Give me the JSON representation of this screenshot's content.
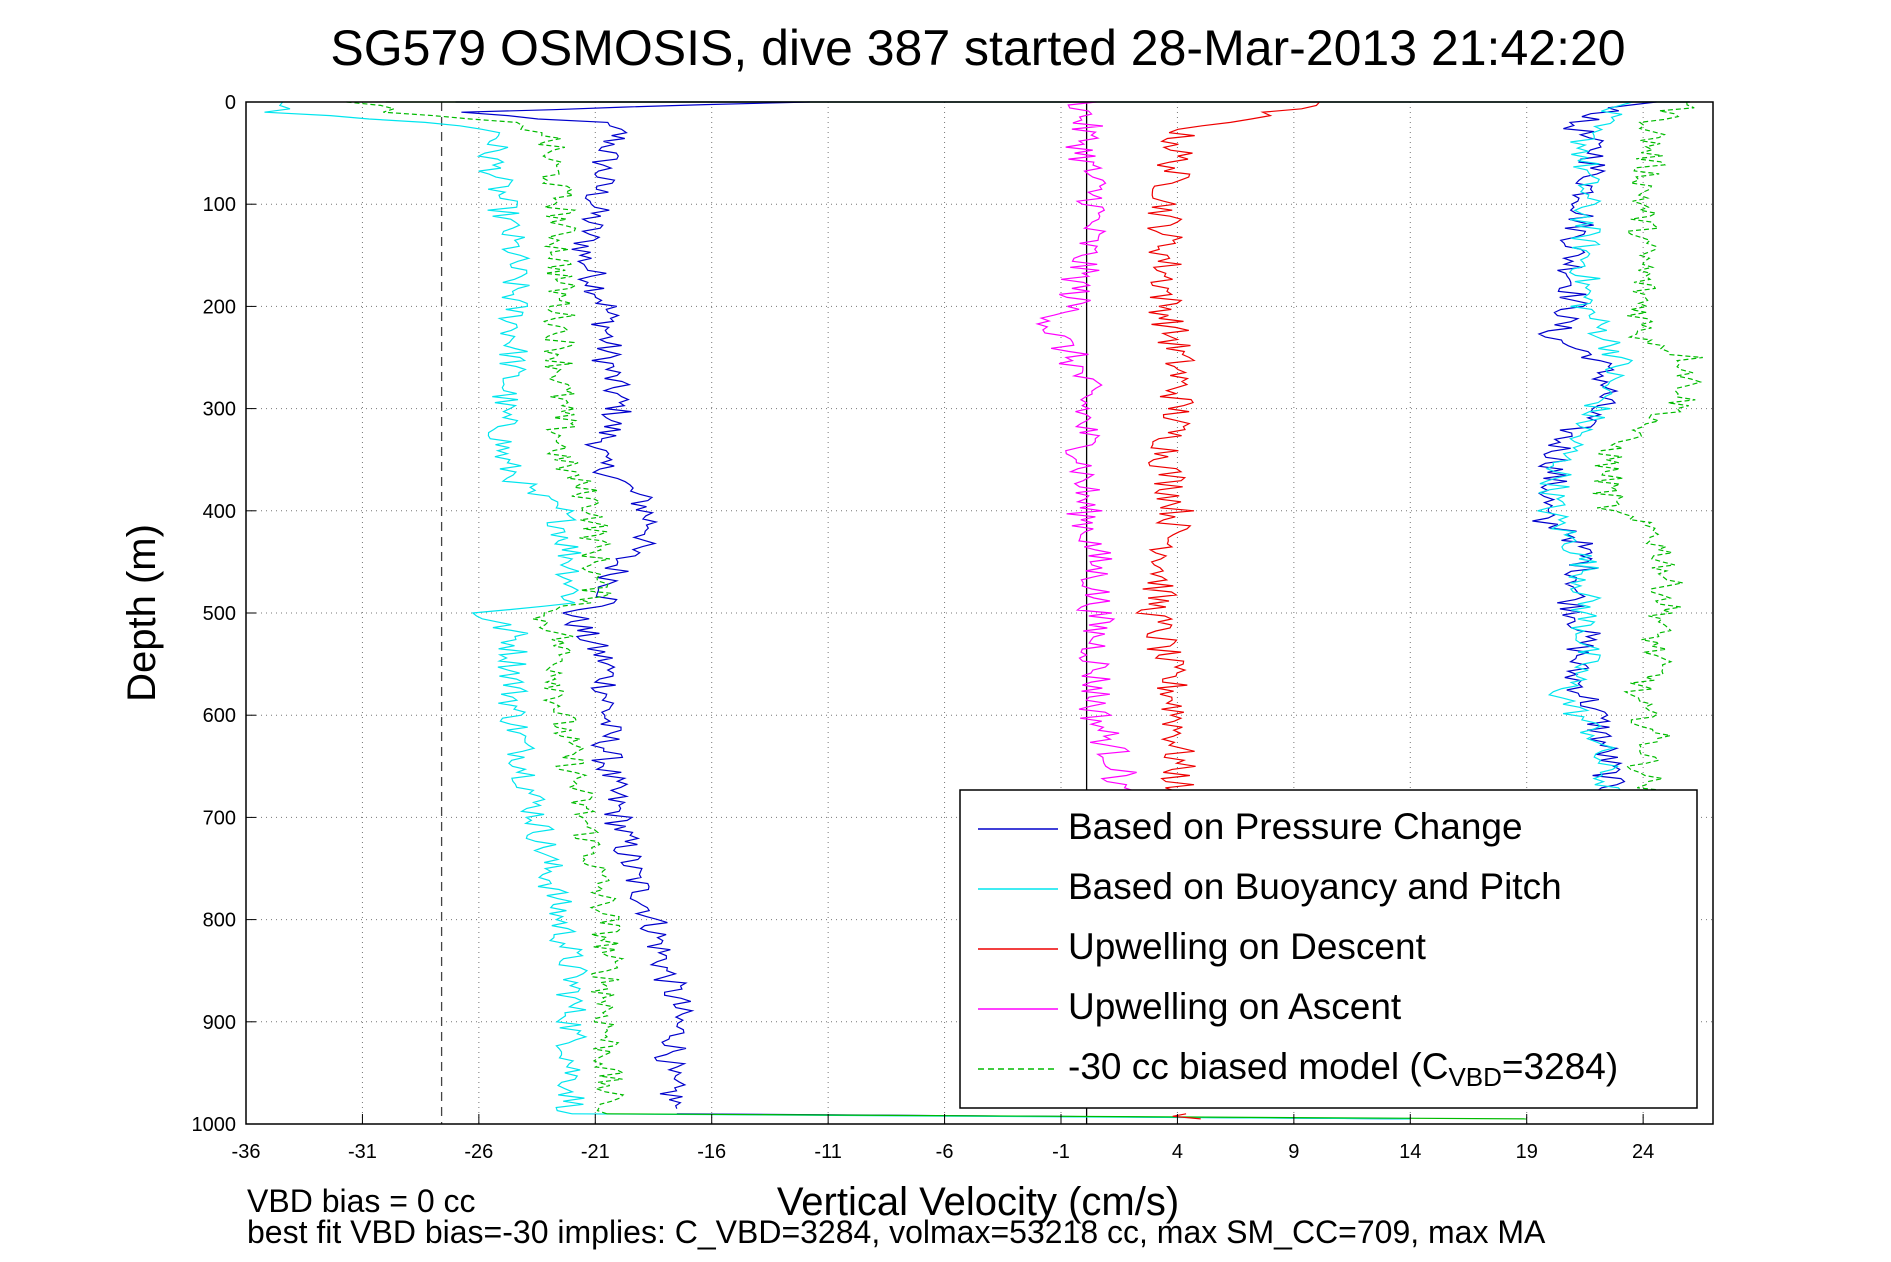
{
  "chart_data": {
    "type": "line",
    "title": "SG579 OSMOSIS, dive 387 started 28-Mar-2013 21:42:20",
    "xlabel": "Vertical Velocity (cm/s)",
    "ylabel": "Depth (m)",
    "xlim": [
      -36,
      27
    ],
    "ylim": [
      1000,
      0
    ],
    "x_ticks": [
      -36,
      -31,
      -26,
      -21,
      -16,
      -11,
      -6,
      -1,
      4,
      9,
      14,
      19,
      24
    ],
    "y_ticks": [
      0,
      100,
      200,
      300,
      400,
      500,
      600,
      700,
      800,
      900,
      1000
    ],
    "grid": "dotted",
    "legend_position": "bottom-right",
    "vertical_reference_lines": [
      {
        "x": -27.6,
        "style": "dashed"
      },
      {
        "x": 0.1,
        "style": "solid"
      }
    ],
    "series": [
      {
        "name": "Based on Pressure Change",
        "color": "#0000cc",
        "style": "solid",
        "segments": [
          {
            "depth": [
              0,
              5,
              10,
              20,
              30,
              50,
              100,
              150,
              200,
              250,
              300,
              350,
              390,
              420,
              450,
              490,
              500,
              520,
              550,
              600,
              650,
              700,
              750,
              800,
              850,
              880,
              920,
              950,
              985
            ],
            "velocity": [
              -12,
              -20,
              -27,
              -21,
              -20,
              -20.5,
              -21,
              -21.5,
              -20.5,
              -20.5,
              -20,
              -21,
              -19,
              -18.5,
              -20,
              -20.5,
              -22,
              -21.5,
              -20.5,
              -20.5,
              -20.5,
              -20,
              -19.5,
              -18.5,
              -18,
              -17.5,
              -17.5,
              -18,
              -17.5
            ]
          },
          {
            "depth": [
              0,
              20,
              50,
              100,
              150,
              200,
              230,
              250,
              280,
              300,
              330,
              380,
              410,
              420,
              450,
              490,
              520,
              560,
              600,
              650,
              680
            ],
            "velocity": [
              24,
              21,
              22,
              21.5,
              21,
              21,
              20,
              22,
              22.5,
              22,
              20.5,
              20,
              19.5,
              21,
              21.5,
              21,
              21.5,
              21,
              22,
              22.5,
              22.5
            ]
          }
        ]
      },
      {
        "name": "Based on Buoyancy and Pitch",
        "color": "#00e5ee",
        "style": "solid",
        "segments": [
          {
            "depth": [
              0,
              10,
              20,
              30,
              50,
              100,
              150,
              200,
              250,
              300,
              350,
              380,
              400,
              450,
              490,
              500,
              520,
              550,
              600,
              650,
              700,
              750,
              800,
              850,
              900,
              950,
              990
            ],
            "velocity": [
              -34,
              -35,
              -28,
              -25,
              -25.5,
              -25,
              -24.5,
              -24.5,
              -24.5,
              -25,
              -25,
              -24,
              -22.5,
              -22,
              -22,
              -26,
              -24.5,
              -24.5,
              -24.5,
              -24,
              -23.5,
              -23,
              -22.5,
              -22,
              -22,
              -22,
              -22
            ]
          },
          {
            "depth": [
              0,
              30,
              100,
              200,
              250,
              300,
              350,
              400,
              450,
              500,
              550,
              580,
              620,
              680
            ],
            "velocity": [
              23,
              21.5,
              21.5,
              21.5,
              23,
              22,
              20.5,
              20,
              21.5,
              21.5,
              21.5,
              20.5,
              22,
              22.5
            ]
          }
        ]
      },
      {
        "name": "Upwelling on Descent",
        "color": "#ee0000",
        "style": "solid",
        "segments": [
          {
            "depth": [
              0,
              10,
              20,
              30,
              50,
              100,
              150,
              200,
              250,
              300,
              350,
              400,
              450,
              500,
              550,
              600,
              650,
              680
            ],
            "velocity": [
              10,
              8,
              6,
              4,
              4,
              3.5,
              3.5,
              3.5,
              4,
              4,
              3.5,
              4,
              3.5,
              3,
              3.5,
              4,
              4,
              4
            ]
          },
          {
            "depth": [
              990,
              995
            ],
            "velocity": [
              4,
              5
            ]
          }
        ]
      },
      {
        "name": "Upwelling on Ascent",
        "color": "#ff00ff",
        "style": "solid",
        "segments": [
          {
            "depth": [
              0,
              50,
              100,
              150,
              200,
              220,
              250,
              280,
              300,
              350,
              400,
              450,
              500,
              550,
              600,
              650,
              680
            ],
            "velocity": [
              0,
              0,
              0.5,
              0,
              -0.5,
              -1.5,
              -0.5,
              0,
              0,
              0,
              0,
              0.5,
              0.5,
              0.5,
              0.5,
              1.5,
              1.5
            ]
          }
        ]
      },
      {
        "name": "-30 cc biased model (C_VBD=3284)",
        "color": "#00bb00",
        "style": "dashed",
        "segments": [
          {
            "depth": [
              0,
              10,
              20,
              30,
              50,
              100,
              150,
              200,
              250,
              300,
              350,
              380,
              400,
              450,
              490,
              500,
              520,
              550,
              600,
              650,
              700,
              750,
              800,
              850,
              900,
              950,
              990
            ],
            "velocity": [
              -31,
              -30,
              -25,
              -23,
              -23,
              -22.5,
              -22.5,
              -22.5,
              -22.5,
              -22.5,
              -22.5,
              -21.5,
              -21,
              -21,
              -21,
              -23.5,
              -22.5,
              -22.5,
              -22.5,
              -22,
              -21.5,
              -21,
              -20.5,
              -20.5,
              -20.5,
              -20.5,
              -20.5
            ]
          },
          {
            "depth": [
              0,
              20,
              100,
              150,
              200,
              230,
              250,
              280,
              300,
              330,
              350,
              380,
              400,
              420,
              450,
              500,
              520,
              560,
              580,
              620,
              650,
              680
            ],
            "velocity": [
              26,
              24.5,
              24,
              24,
              24,
              24,
              26,
              26,
              25.5,
              23,
              22.5,
              22.5,
              22.5,
              24.5,
              25,
              25,
              24.5,
              24.5,
              23.5,
              24.5,
              24,
              24.5
            ]
          }
        ]
      }
    ],
    "transition_traces": [
      {
        "color": "#0000cc",
        "depth": [
          0,
          0
        ],
        "velocity": [
          -27,
          26
        ]
      },
      {
        "color": "#0000cc",
        "depth": [
          990,
          995
        ],
        "velocity": [
          -17.5,
          14
        ]
      },
      {
        "color": "#00e5ee",
        "depth": [
          990,
          995
        ],
        "velocity": [
          -22,
          14
        ]
      },
      {
        "color": "#00bb00",
        "depth": [
          990,
          995
        ],
        "velocity": [
          -20.5,
          19
        ]
      },
      {
        "color": "#00bb00",
        "depth": [
          0,
          0
        ],
        "velocity": [
          -30,
          26
        ]
      }
    ]
  },
  "legend": {
    "items": [
      {
        "label": "Based on Pressure Change",
        "color": "#0000cc",
        "style": "solid"
      },
      {
        "label": "Based on Buoyancy and Pitch",
        "color": "#00e5ee",
        "style": "solid"
      },
      {
        "label": "Upwelling on Descent",
        "color": "#ee0000",
        "style": "solid"
      },
      {
        "label": "Upwelling on Ascent",
        "color": "#ff00ff",
        "style": "solid"
      }
    ],
    "model_item": {
      "prefix": "-30 cc biased model (C",
      "subscript": "VBD",
      "suffix": "=3284)",
      "color": "#00bb00",
      "style": "dashed"
    }
  },
  "footer": {
    "line1": "VBD bias = 0 cc",
    "line2": "best fit VBD bias=-30 implies: C_VBD=3284, volmax=53218 cc, max SM_CC=709, max MA"
  }
}
